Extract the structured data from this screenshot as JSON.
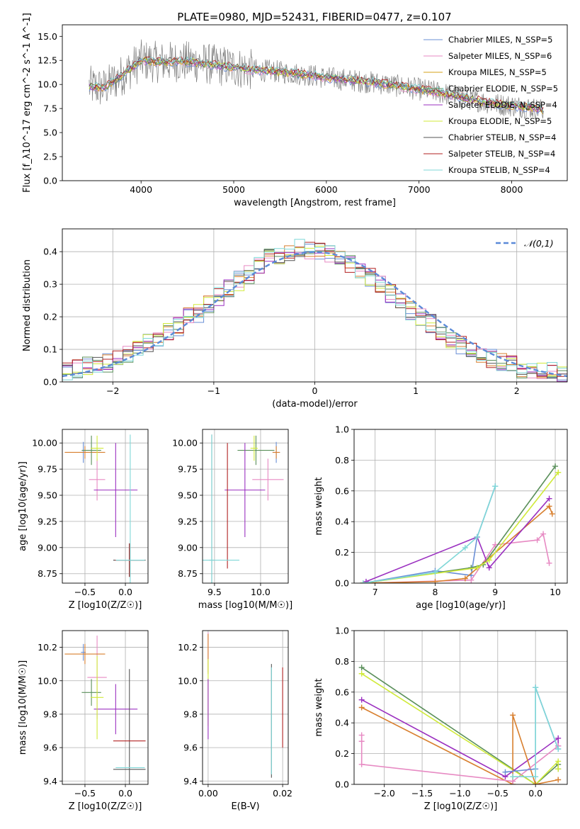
{
  "figure": {
    "title": "PLATE=0980, MJD=52431, FIBERID=0477, z=0.107"
  },
  "chart_data": [
    {
      "id": "spectrum",
      "type": "line",
      "title": "PLATE=0980, MJD=52431, FIBERID=0477, z=0.107",
      "xlabel": "wavelength [Angstrom, rest frame]",
      "ylabel": "Flux [f_λ10^-17 erg cm^-2 s^-1 A^-1]",
      "xlim": [
        3150,
        8600
      ],
      "ylim": [
        0,
        16.2
      ],
      "xticks": [
        4000,
        5000,
        6000,
        7000,
        8000
      ],
      "yticks": [
        0.0,
        2.5,
        5.0,
        7.5,
        10.0,
        12.5,
        15.0
      ],
      "grid": false,
      "legend_position": "top-right",
      "legend": [
        {
          "label": "Chabrier MILES, N_SSP=5",
          "color": "#6a8fd6"
        },
        {
          "label": "Salpeter MILES, N_SSP=6",
          "color": "#e78ac3"
        },
        {
          "label": "Kroupa MILES, N_SSP=5",
          "color": "#d4a017"
        },
        {
          "label": "Chabrier ELODIE, N_SSP=5",
          "color": "#5a8f5a"
        },
        {
          "label": "Salpeter ELODIE, N_SSP=4",
          "color": "#9b30c0"
        },
        {
          "label": "Kroupa ELODIE, N_SSP=5",
          "color": "#d0ea3a"
        },
        {
          "label": "Chabrier STELIB, N_SSP=4",
          "color": "#555555"
        },
        {
          "label": "Salpeter STELIB, N_SSP=4",
          "color": "#b22222"
        },
        {
          "label": "Kroupa STELIB, N_SSP=4",
          "color": "#7fd7d7"
        }
      ],
      "data_color": "#808080",
      "model_x": [
        3440,
        3600,
        3800,
        4000,
        4200,
        4400,
        4600,
        4800,
        5000,
        5200,
        5400,
        5600,
        5800,
        6000,
        6200,
        6400,
        6600,
        6800,
        7000,
        7200,
        7400,
        7600,
        7800,
        8000,
        8200,
        8350
      ],
      "model_y": [
        9.8,
        9.6,
        11.0,
        12.5,
        12.3,
        12.4,
        12.3,
        12.0,
        11.8,
        11.5,
        11.4,
        11.2,
        11.0,
        10.7,
        10.5,
        10.3,
        10.1,
        9.8,
        9.5,
        9.2,
        8.8,
        8.4,
        8.0,
        7.8,
        7.6,
        7.3
      ]
    },
    {
      "id": "residuals",
      "type": "line",
      "xlabel": "(data-model)/error",
      "ylabel": "Normed distribution",
      "xlim": [
        -2.5,
        2.5
      ],
      "ylim": [
        0,
        0.47
      ],
      "xticks": [
        -2,
        -1,
        0,
        1,
        2
      ],
      "yticks": [
        0.0,
        0.1,
        0.2,
        0.3,
        0.4
      ],
      "grid": true,
      "legend_position": "top-right",
      "legend": [
        {
          "label": "𝒩(0,1)",
          "color": "#5b8ad8"
        }
      ],
      "bin_edges": [
        -2.5,
        -2.4,
        -2.3,
        -2.2,
        -2.1,
        -2.0,
        -1.9,
        -1.8,
        -1.7,
        -1.6,
        -1.5,
        -1.4,
        -1.3,
        -1.2,
        -1.1,
        -1.0,
        -0.9,
        -0.8,
        -0.7,
        -0.6,
        -0.5,
        -0.4,
        -0.3,
        -0.2,
        -0.1,
        0.0,
        0.1,
        0.2,
        0.3,
        0.4,
        0.5,
        0.6,
        0.7,
        0.8,
        0.9,
        1.0,
        1.1,
        1.2,
        1.3,
        1.4,
        1.5,
        1.6,
        1.7,
        1.8,
        1.9,
        2.0,
        2.1,
        2.2,
        2.3,
        2.4,
        2.5
      ],
      "hist_base": [
        0.03,
        0.04,
        0.05,
        0.06,
        0.06,
        0.08,
        0.08,
        0.1,
        0.12,
        0.14,
        0.15,
        0.17,
        0.2,
        0.21,
        0.24,
        0.26,
        0.29,
        0.31,
        0.33,
        0.36,
        0.38,
        0.39,
        0.4,
        0.41,
        0.4,
        0.4,
        0.39,
        0.38,
        0.36,
        0.34,
        0.32,
        0.3,
        0.27,
        0.25,
        0.22,
        0.2,
        0.18,
        0.15,
        0.13,
        0.11,
        0.1,
        0.08,
        0.07,
        0.06,
        0.05,
        0.04,
        0.04,
        0.03,
        0.03,
        0.02
      ],
      "gauss_mean": 0,
      "gauss_sigma": 1
    },
    {
      "id": "age-vs-Z",
      "type": "scatter",
      "xlabel": "Z [log10(Z/Z☉)]",
      "ylabel": "age  [log10(age/yr)]",
      "xlim": [
        -0.78,
        0.28
      ],
      "ylim": [
        8.66,
        10.13
      ],
      "xticks": [
        -0.5,
        0.0
      ],
      "yticks": [
        8.75,
        9.0,
        9.25,
        9.5,
        9.75,
        10.0
      ],
      "grid": true,
      "points": [
        {
          "x": -0.52,
          "y": 9.91,
          "xerr": 0.03,
          "yerr": 0.1,
          "color": "#6a8fd6"
        },
        {
          "x": -0.35,
          "y": 9.65,
          "xerr": 0.1,
          "yerr": 0.2,
          "color": "#e78ac3"
        },
        {
          "x": -0.5,
          "y": 9.91,
          "xerr": 0.25,
          "yerr": 0.06,
          "color": "#d87f2e"
        },
        {
          "x": -0.42,
          "y": 9.93,
          "xerr": 0.12,
          "yerr": 0.14,
          "color": "#5a8f5a"
        },
        {
          "x": -0.12,
          "y": 9.55,
          "xerr": 0.27,
          "yerr": 0.45,
          "color": "#9b30c0"
        },
        {
          "x": -0.35,
          "y": 9.95,
          "xerr": 0.08,
          "yerr": 0.12,
          "color": "#d0ea3a"
        },
        {
          "x": 0.05,
          "y": 8.88,
          "xerr": 0.2,
          "yerr": 0.16,
          "color": "#555555"
        },
        {
          "x": 0.05,
          "y": 8.88,
          "xerr": 0.18,
          "yerr": 0.16,
          "color": "#b22222"
        },
        {
          "x": 0.06,
          "y": 8.88,
          "xerr": 0.18,
          "yerr": 1.2,
          "color": "#7fd7d7"
        }
      ]
    },
    {
      "id": "age-vs-mass",
      "type": "scatter",
      "xlabel": "mass [log10(M/M☉)]",
      "ylabel": "",
      "xlim": [
        9.37,
        10.3
      ],
      "ylim": [
        8.66,
        10.13
      ],
      "xticks": [
        9.5,
        10.0
      ],
      "yticks": [
        8.75,
        9.0,
        9.25,
        9.5,
        9.75,
        10.0
      ],
      "grid": true,
      "points": [
        {
          "x": 10.17,
          "y": 9.91,
          "xerr": 0.04,
          "yerr": 0.1,
          "color": "#6a8fd6"
        },
        {
          "x": 10.08,
          "y": 9.65,
          "xerr": 0.17,
          "yerr": 0.2,
          "color": "#e78ac3"
        },
        {
          "x": 10.17,
          "y": 9.91,
          "xerr": 0.04,
          "yerr": 0.06,
          "color": "#d87f2e"
        },
        {
          "x": 9.95,
          "y": 9.93,
          "xerr": 0.2,
          "yerr": 0.14,
          "color": "#5a8f5a"
        },
        {
          "x": 9.83,
          "y": 9.55,
          "xerr": 0.22,
          "yerr": 0.45,
          "color": "#9b30c0"
        },
        {
          "x": 9.93,
          "y": 9.95,
          "xerr": 0.04,
          "yerr": 0.12,
          "color": "#d0ea3a"
        },
        {
          "x": 9.47,
          "y": 8.88,
          "xerr": 0.03,
          "yerr": 1.2,
          "color": "#555555"
        },
        {
          "x": 9.64,
          "y": 9.4,
          "xerr": 0.0,
          "yerr": 0.6,
          "color": "#b22222"
        },
        {
          "x": 9.47,
          "y": 8.88,
          "xerr": 0.3,
          "yerr": 1.2,
          "color": "#7fd7d7"
        }
      ]
    },
    {
      "id": "weight-vs-age",
      "type": "line",
      "xlabel": "age  [log10(age/yr)]",
      "ylabel": "mass weight",
      "xlim": [
        6.65,
        10.2
      ],
      "ylim": [
        0,
        1
      ],
      "xticks": [
        7,
        8,
        9,
        10
      ],
      "yticks": [
        0.0,
        0.2,
        0.4,
        0.6,
        0.8,
        1.0
      ],
      "grid": true,
      "series": [
        {
          "color": "#6a8fd6",
          "x": [
            6.8,
            8.0,
            8.6,
            8.7,
            9.0
          ],
          "y": [
            0.0,
            0.08,
            0.05,
            0.3,
            0.63
          ]
        },
        {
          "color": "#e78ac3",
          "x": [
            6.8,
            8.6,
            9.0,
            9.7,
            9.8,
            9.9
          ],
          "y": [
            0.0,
            0.02,
            0.25,
            0.28,
            0.32,
            0.13
          ]
        },
        {
          "color": "#d87f2e",
          "x": [
            6.8,
            8.0,
            8.5,
            9.9,
            9.95
          ],
          "y": [
            0.0,
            0.01,
            0.03,
            0.5,
            0.45
          ]
        },
        {
          "color": "#5a8f5a",
          "x": [
            6.8,
            8.6,
            8.8,
            10.0
          ],
          "y": [
            0.0,
            0.1,
            0.12,
            0.76
          ]
        },
        {
          "color": "#9b30c0",
          "x": [
            6.85,
            8.7,
            8.9,
            9.9
          ],
          "y": [
            0.01,
            0.3,
            0.1,
            0.55
          ]
        },
        {
          "color": "#d0ea3a",
          "x": [
            6.8,
            8.7,
            8.9,
            10.05
          ],
          "y": [
            0.0,
            0.1,
            0.15,
            0.72
          ]
        },
        {
          "color": "#7fd7d7",
          "x": [
            6.8,
            8.0,
            8.5,
            8.7,
            9.0
          ],
          "y": [
            0.0,
            0.07,
            0.23,
            0.3,
            0.63
          ]
        }
      ]
    },
    {
      "id": "mass-vs-Z",
      "type": "scatter",
      "xlabel": "Z [log10(Z/Z☉)]",
      "ylabel": "mass [log10(M/M☉)]",
      "xlim": [
        -0.78,
        0.28
      ],
      "ylim": [
        9.38,
        10.3
      ],
      "xticks": [
        -0.5,
        0.0
      ],
      "yticks": [
        9.4,
        9.6,
        9.8,
        10.0,
        10.2
      ],
      "grid": true,
      "points": [
        {
          "x": -0.52,
          "y": 10.17,
          "xerr": 0.03,
          "yerr": 0.05,
          "color": "#6a8fd6"
        },
        {
          "x": -0.35,
          "y": 10.02,
          "xerr": 0.12,
          "yerr": 0.25,
          "color": "#e78ac3"
        },
        {
          "x": -0.5,
          "y": 10.16,
          "xerr": 0.25,
          "yerr": 0.06,
          "color": "#d87f2e"
        },
        {
          "x": -0.42,
          "y": 9.93,
          "xerr": 0.12,
          "yerr": 0.08,
          "color": "#5a8f5a"
        },
        {
          "x": -0.12,
          "y": 9.83,
          "xerr": 0.27,
          "yerr": 0.15,
          "color": "#9b30c0"
        },
        {
          "x": -0.35,
          "y": 9.9,
          "xerr": 0.08,
          "yerr": 0.25,
          "color": "#d0ea3a"
        },
        {
          "x": 0.05,
          "y": 9.47,
          "xerr": 0.2,
          "yerr": 0.6,
          "color": "#555555"
        },
        {
          "x": 0.05,
          "y": 9.64,
          "xerr": 0.2,
          "yerr": 0.0,
          "color": "#b22222"
        },
        {
          "x": 0.06,
          "y": 9.48,
          "xerr": 0.18,
          "yerr": 0.0,
          "color": "#7fd7d7"
        }
      ]
    },
    {
      "id": "mass-vs-ebv",
      "type": "scatter",
      "xlabel": "E(B-V)",
      "ylabel": "",
      "xlim": [
        -0.0015,
        0.0215
      ],
      "ylim": [
        9.38,
        10.3
      ],
      "xticks": [
        0.0,
        0.02
      ],
      "yticks": [
        9.4,
        9.6,
        9.8,
        10.0,
        10.2
      ],
      "grid": true,
      "points": [
        {
          "x": 0.0,
          "y": 10.17,
          "xerr": 0,
          "yerr": 0.12,
          "color": "#e78ac3"
        },
        {
          "x": 0.0,
          "y": 10.16,
          "xerr": 0,
          "yerr": 0.12,
          "color": "#d87f2e"
        },
        {
          "x": 0.0,
          "y": 9.93,
          "xerr": 0,
          "yerr": 0.2,
          "color": "#d0ea3a"
        },
        {
          "x": 0.0,
          "y": 9.83,
          "xerr": 0,
          "yerr": 0.18,
          "color": "#9b30c0"
        },
        {
          "x": 0.017,
          "y": 9.76,
          "xerr": 0,
          "yerr": 0.34,
          "color": "#555555"
        },
        {
          "x": 0.017,
          "y": 9.76,
          "xerr": 0,
          "yerr": 0.32,
          "color": "#7fd7d7"
        },
        {
          "x": 0.02,
          "y": 9.84,
          "xerr": 0,
          "yerr": 0.24,
          "color": "#b22222"
        }
      ]
    },
    {
      "id": "weight-vs-Z",
      "type": "line",
      "xlabel": "Z [log10(Z/Z☉)]",
      "ylabel": "mass weight",
      "xlim": [
        -2.4,
        0.42
      ],
      "ylim": [
        0,
        1
      ],
      "xticks": [
        -2.0,
        -1.5,
        -1.0,
        -0.5,
        0.0
      ],
      "yticks": [
        0.0,
        0.2,
        0.4,
        0.6,
        0.8,
        1.0
      ],
      "grid": true,
      "series": [
        {
          "color": "#5a8f5a",
          "x": [
            -2.3,
            0.0,
            0.3,
            0.3
          ],
          "y": [
            0.76,
            0.0,
            0.13,
            0.1
          ]
        },
        {
          "color": "#d0ea3a",
          "x": [
            -2.3,
            0.0,
            0.3,
            0.3
          ],
          "y": [
            0.72,
            0.0,
            0.15,
            0.1
          ]
        },
        {
          "color": "#9b30c0",
          "x": [
            -2.3,
            -0.4,
            0.3,
            0.3
          ],
          "y": [
            0.55,
            0.05,
            0.3,
            0.25
          ]
        },
        {
          "color": "#d87f2e",
          "x": [
            -2.3,
            -0.3,
            -0.3,
            0.0,
            0.3
          ],
          "y": [
            0.5,
            0.0,
            0.45,
            0.0,
            0.03
          ]
        },
        {
          "color": "#e78ac3",
          "x": [
            -2.3,
            -2.3,
            -2.3,
            -0.3,
            0.3
          ],
          "y": [
            0.32,
            0.28,
            0.13,
            0.02,
            0.25
          ]
        },
        {
          "color": "#6a8fd6",
          "x": [
            -0.4,
            0.0,
            0.0,
            0.3
          ],
          "y": [
            0.08,
            0.1,
            0.63,
            0.23
          ]
        },
        {
          "color": "#7fd7d7",
          "x": [
            -0.3,
            0.0,
            0.0,
            0.3
          ],
          "y": [
            0.05,
            0.05,
            0.63,
            0.23
          ]
        }
      ]
    }
  ]
}
